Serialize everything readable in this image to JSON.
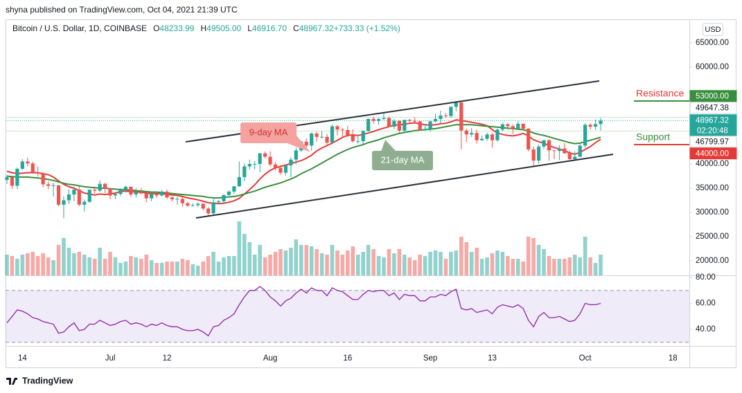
{
  "header": {
    "published": "shyna published on TradingView.com, Oct 04, 2021 21:39 UTC",
    "brand": "TradingView"
  },
  "chart_data": {
    "type": "candlestick",
    "title": "Bitcoin / U.S. Dollar, 1D, COINBASE",
    "ohlc": [
      {
        "key": "O",
        "text": "48233.99"
      },
      {
        "key": "H",
        "text": "49505.00"
      },
      {
        "key": "L",
        "text": "46916.70"
      },
      {
        "key": "C",
        "text": "48967.32"
      },
      {
        "key": "",
        "text": "+733.33 (+1.52%)"
      }
    ],
    "currency": "USD",
    "categories": [
      null,
      null,
      null,
      "14",
      null,
      null,
      null,
      null,
      null,
      null,
      null,
      null,
      null,
      null,
      null,
      null,
      null,
      null,
      null,
      null,
      "Jul",
      null,
      null,
      null,
      null,
      null,
      null,
      null,
      null,
      null,
      null,
      "12",
      null,
      null,
      null,
      null,
      null,
      null,
      null,
      null,
      null,
      null,
      null,
      null,
      null,
      null,
      null,
      null,
      null,
      null,
      null,
      "Aug",
      null,
      null,
      null,
      null,
      null,
      null,
      null,
      null,
      null,
      null,
      null,
      null,
      null,
      null,
      "16",
      null,
      null,
      null,
      null,
      null,
      null,
      null,
      null,
      null,
      null,
      null,
      null,
      null,
      null,
      null,
      "Sep",
      null,
      null,
      null,
      null,
      null,
      null,
      null,
      null,
      null,
      null,
      null,
      "13",
      null,
      null,
      null,
      null,
      null,
      null,
      null,
      null,
      null,
      null,
      null,
      null,
      null,
      null,
      null,
      null,
      null,
      "Oct",
      null,
      null,
      null,
      null,
      null,
      null,
      null,
      null,
      null,
      null,
      null,
      null,
      null,
      null,
      null,
      null,
      "18",
      null,
      null,
      null
    ],
    "open": [
      36700,
      37300,
      35500,
      39000,
      40500,
      40100,
      38300,
      38000,
      35800,
      35500,
      35600,
      31600,
      32500,
      33700,
      34700,
      31600,
      32200,
      34700,
      34500,
      35900,
      35000,
      33500,
      33800,
      34700,
      35300,
      33700,
      34200,
      33900,
      32900,
      33800,
      33500,
      34300,
      33100,
      32700,
      32800,
      31900,
      31400,
      31500,
      31800,
      30800,
      29800,
      32100,
      32300,
      33600,
      34300,
      35400,
      37300,
      39500,
      40000,
      40000,
      42200,
      41500,
      39900,
      39200,
      38200,
      39700,
      40900,
      42800,
      44600,
      43800,
      46300,
      45600,
      45600,
      44400,
      47800,
      47100,
      47000,
      45900,
      44700,
      44700,
      46800,
      49300,
      48900,
      49300,
      49500,
      47700,
      48900,
      46900,
      49100,
      48900,
      48800,
      47000,
      47200,
      48800,
      49300,
      50000,
      49900,
      51800,
      52700,
      46900,
      46100,
      46400,
      44900,
      45200,
      46100,
      44900,
      47100,
      48200,
      47800,
      47300,
      48300,
      47300,
      43000,
      40700,
      43600,
      44900,
      42800,
      42700,
      43200,
      42200,
      41000,
      41500,
      43800,
      48100,
      47700,
      48233.99,
      null,
      null,
      null,
      null,
      null,
      null,
      null,
      null,
      null,
      null,
      null,
      null,
      null,
      null,
      null,
      null,
      null
    ],
    "high": [
      37700,
      37400,
      39300,
      41000,
      41300,
      40500,
      39500,
      38200,
      36400,
      36100,
      35700,
      33300,
      34800,
      35300,
      35500,
      32700,
      34700,
      35300,
      36600,
      36100,
      35100,
      33900,
      35000,
      35500,
      35300,
      35000,
      35100,
      34000,
      34100,
      34000,
      34600,
      34700,
      33300,
      33200,
      33200,
      32200,
      31900,
      32100,
      31900,
      31100,
      32800,
      32600,
      33700,
      34500,
      35400,
      40500,
      40100,
      40900,
      40600,
      42300,
      42600,
      42600,
      40400,
      39800,
      39900,
      41400,
      43400,
      44800,
      45300,
      46500,
      46700,
      46800,
      46200,
      48100,
      48100,
      47400,
      47900,
      47200,
      46000,
      47000,
      49400,
      49800,
      49500,
      50500,
      49800,
      49300,
      49000,
      49200,
      49300,
      49600,
      48900,
      48200,
      48900,
      50400,
      51000,
      50500,
      51900,
      52900,
      52900,
      47300,
      47400,
      47100,
      45900,
      46500,
      46400,
      47300,
      48500,
      48500,
      48200,
      48800,
      48400,
      47400,
      43600,
      44000,
      45000,
      45100,
      42800,
      43900,
      44300,
      42800,
      42600,
      44100,
      48400,
      48400,
      49200,
      49505,
      null,
      null,
      null,
      null,
      null,
      null,
      null,
      null,
      null,
      null,
      null,
      null,
      null,
      null,
      null,
      null,
      null
    ],
    "low": [
      35900,
      34800,
      34800,
      38800,
      39500,
      38100,
      37400,
      35200,
      34800,
      33300,
      31300,
      28800,
      31700,
      32300,
      31300,
      30200,
      32000,
      33900,
      34200,
      34000,
      32700,
      32700,
      33400,
      34100,
      33200,
      33100,
      33800,
      32100,
      32300,
      33000,
      33300,
      32700,
      32300,
      31600,
      31200,
      31100,
      31200,
      31100,
      30400,
      29300,
      29500,
      31700,
      31800,
      33400,
      33900,
      35300,
      36400,
      38800,
      38900,
      38300,
      41100,
      39500,
      38700,
      37700,
      37600,
      37300,
      39900,
      42500,
      43400,
      42800,
      44600,
      45300,
      43800,
      44300,
      45900,
      45500,
      45600,
      44400,
      44200,
      43900,
      46700,
      48300,
      48100,
      49100,
      47600,
      47200,
      46300,
      46400,
      48400,
      48300,
      46900,
      46800,
      46700,
      48600,
      48400,
      49500,
      49500,
      50900,
      43000,
      44500,
      45600,
      44200,
      44800,
      44800,
      43400,
      44600,
      46700,
      47100,
      46200,
      47100,
      46900,
      42600,
      39600,
      40100,
      43100,
      40700,
      41000,
      40800,
      42100,
      40900,
      40800,
      41400,
      43300,
      47100,
      47100,
      46916.7,
      null,
      null,
      null,
      null,
      null,
      null,
      null,
      null,
      null,
      null,
      null,
      null,
      null,
      null,
      null,
      null,
      null
    ],
    "close": [
      37300,
      35500,
      39000,
      40500,
      40100,
      38300,
      38000,
      35800,
      35500,
      35600,
      31600,
      32500,
      33700,
      34700,
      31600,
      32200,
      34700,
      34500,
      35900,
      35000,
      33500,
      33800,
      34700,
      35300,
      33700,
      34200,
      33900,
      32900,
      33800,
      33500,
      34300,
      33100,
      32700,
      32800,
      31900,
      31400,
      31500,
      31800,
      30800,
      29800,
      32100,
      32300,
      33600,
      34300,
      35400,
      37300,
      39500,
      40000,
      40000,
      42200,
      41500,
      39900,
      39200,
      38200,
      39700,
      40900,
      42800,
      44600,
      43800,
      46300,
      45600,
      45600,
      44400,
      47800,
      47100,
      47000,
      45900,
      44700,
      44700,
      46800,
      49300,
      48900,
      49300,
      49500,
      47700,
      48900,
      46900,
      49100,
      48900,
      48800,
      47000,
      47200,
      48800,
      49300,
      50000,
      49900,
      51800,
      52700,
      46900,
      46100,
      46400,
      44900,
      45200,
      46100,
      44900,
      47100,
      48200,
      47800,
      47300,
      48300,
      47300,
      43000,
      40700,
      43600,
      44900,
      42800,
      42700,
      43200,
      42200,
      41000,
      41500,
      43800,
      48100,
      47700,
      48233.99,
      48967.32,
      null,
      null,
      null,
      null,
      null,
      null,
      null,
      null,
      null,
      null,
      null,
      null,
      null,
      null,
      null,
      null,
      null
    ],
    "up_color": "#26a69a",
    "down_color": "#ef5350",
    "ylim": [
      17000,
      69860
    ],
    "yticks": [
      {
        "value": 65000,
        "label": "65000.00"
      },
      {
        "value": 60000,
        "label": "60000.00"
      },
      {
        "value": 40000,
        "label": "40000.00"
      },
      {
        "value": 35000,
        "label": "35000.00"
      },
      {
        "value": 30000,
        "label": "30000.00"
      },
      {
        "value": 25000,
        "label": "25000.00"
      },
      {
        "value": 20000,
        "label": "20000.00"
      }
    ],
    "ma_lines": [
      {
        "name": "9-day MA",
        "color": "#e53935",
        "values": [
          38500,
          38200,
          38000,
          38100,
          38200,
          38200,
          38200,
          38000,
          37800,
          37300,
          36500,
          35800,
          35300,
          35000,
          34500,
          34000,
          33800,
          33600,
          33800,
          33700,
          33800,
          34000,
          34300,
          34400,
          34300,
          34200,
          34200,
          34000,
          33900,
          33900,
          33900,
          33700,
          33600,
          33500,
          33300,
          33000,
          32800,
          32600,
          32300,
          32000,
          31900,
          31800,
          31900,
          32100,
          32400,
          32900,
          33800,
          34700,
          35700,
          36900,
          37900,
          38700,
          39200,
          39500,
          39800,
          40100,
          40400,
          40700,
          41200,
          41800,
          42700,
          43300,
          43800,
          44300,
          44900,
          45500,
          45900,
          46000,
          45900,
          46100,
          46400,
          46700,
          47100,
          47400,
          47700,
          48000,
          48100,
          48200,
          48400,
          48500,
          48300,
          48100,
          48000,
          48100,
          48300,
          48400,
          48700,
          49100,
          49000,
          48800,
          48600,
          48400,
          48200,
          47900,
          47100,
          46400,
          46100,
          45900,
          45800,
          46000,
          46300,
          45800,
          45000,
          44600,
          44300,
          43800,
          43400,
          43100,
          42700,
          42300,
          42000,
          42400,
          43000,
          43600,
          44400,
          45100,
          null,
          null,
          null,
          null,
          null,
          null,
          null,
          null,
          null,
          null,
          null,
          null,
          null,
          null,
          null,
          null,
          null
        ]
      },
      {
        "name": "21-day MA",
        "color": "#388e3c",
        "values": [
          37500,
          37400,
          37300,
          37300,
          37300,
          37200,
          37100,
          37000,
          36800,
          36600,
          36300,
          36000,
          35800,
          35700,
          35500,
          35300,
          35200,
          35100,
          35000,
          35000,
          34900,
          34800,
          34700,
          34700,
          34600,
          34500,
          34400,
          34300,
          34200,
          34200,
          34100,
          34000,
          33900,
          33800,
          33700,
          33600,
          33500,
          33400,
          33300,
          33100,
          33000,
          33000,
          33100,
          33200,
          33300,
          33500,
          33800,
          34100,
          34400,
          34800,
          35200,
          35500,
          35800,
          36100,
          36500,
          36900,
          37400,
          38000,
          38500,
          39000,
          39600,
          40200,
          40800,
          41400,
          42000,
          42500,
          43000,
          43400,
          43700,
          44000,
          44400,
          44700,
          45000,
          45400,
          45700,
          46000,
          46300,
          46500,
          46700,
          46900,
          47000,
          47100,
          47200,
          47300,
          47500,
          47700,
          47900,
          48100,
          48100,
          48100,
          48100,
          48000,
          47900,
          47800,
          47700,
          47600,
          47500,
          47400,
          47300,
          47200,
          47100,
          46800,
          46400,
          46100,
          45900,
          45600,
          45300,
          45000,
          44700,
          44400,
          44200,
          44300,
          44600,
          44900,
          45200,
          45500,
          null,
          null,
          null,
          null,
          null,
          null,
          null,
          null,
          null,
          null,
          null,
          null,
          null,
          null,
          null,
          null,
          null
        ]
      }
    ],
    "volume": {
      "ylim": [
        0,
        25000
      ],
      "values": [
        7500,
        7000,
        6000,
        7500,
        8000,
        8500,
        7000,
        8000,
        6500,
        5500,
        11000,
        13500,
        10000,
        8000,
        8500,
        7500,
        6500,
        6000,
        10000,
        6000,
        8500,
        6500,
        4500,
        5000,
        7000,
        6500,
        6000,
        7500,
        5500,
        4500,
        4500,
        5000,
        5000,
        5000,
        6000,
        5500,
        4000,
        3500,
        5000,
        7000,
        8500,
        5000,
        6500,
        7000,
        7000,
        19500,
        15000,
        12000,
        7500,
        11000,
        6500,
        7500,
        8500,
        9500,
        9000,
        10000,
        13000,
        11000,
        11000,
        10500,
        9500,
        8000,
        7500,
        11000,
        9000,
        7500,
        9000,
        10500,
        7500,
        8500,
        11000,
        9500,
        7000,
        6500,
        9500,
        8000,
        9500,
        7500,
        6500,
        5500,
        7500,
        7000,
        8500,
        9000,
        8500,
        6000,
        8500,
        9000,
        14000,
        12000,
        8500,
        10000,
        6000,
        6500,
        8000,
        9000,
        8500,
        7000,
        6000,
        6000,
        5000,
        14000,
        13500,
        11000,
        9500,
        7000,
        6000,
        6000,
        6000,
        6500,
        7500,
        6500,
        14000,
        6500,
        4500,
        7500,
        null,
        null,
        null,
        null,
        null,
        null,
        null,
        null,
        null,
        null,
        null,
        null,
        null,
        null,
        null,
        null,
        null
      ]
    },
    "rsi": {
      "color": "#8e24aa",
      "band": [
        30,
        70
      ],
      "ylim": [
        27.2,
        81.6
      ],
      "yticks": [
        {
          "value": 80,
          "label": "80.00"
        },
        {
          "value": 60,
          "label": "60.00"
        },
        {
          "value": 40,
          "label": "40.00"
        }
      ],
      "values": [
        45,
        50,
        55,
        54,
        52,
        49,
        48,
        46,
        45,
        44,
        37,
        38,
        42,
        45,
        39,
        40,
        44,
        44,
        47,
        45,
        43,
        44,
        46,
        47,
        44,
        45,
        44,
        42,
        44,
        43,
        45,
        43,
        42,
        42,
        40,
        39,
        39,
        40,
        38,
        35,
        42,
        43,
        47,
        49,
        52,
        59,
        65,
        70,
        70,
        73,
        70,
        65,
        62,
        58,
        62,
        64,
        68,
        71,
        68,
        72,
        70,
        70,
        66,
        72,
        70,
        69,
        66,
        63,
        63,
        67,
        70,
        69,
        70,
        70,
        66,
        68,
        63,
        67,
        66,
        66,
        62,
        62,
        65,
        65,
        67,
        66,
        69,
        71,
        56,
        55,
        56,
        53,
        54,
        55,
        52,
        57,
        59,
        58,
        57,
        59,
        56,
        47,
        42,
        50,
        53,
        49,
        49,
        50,
        48,
        46,
        47,
        52,
        60,
        59,
        59,
        60,
        null,
        null,
        null,
        null,
        null,
        null,
        null,
        null,
        null,
        null,
        null,
        null,
        null,
        null,
        null,
        null,
        null
      ]
    },
    "price_labels": [
      {
        "value": 53000,
        "label": "53000.00",
        "color": "#388e3c",
        "label_color": "#ffffff",
        "text": "Resistance",
        "text_color": "#e53935"
      },
      {
        "value": 49647.38,
        "label": "49647.38",
        "color": "#ffffff",
        "label_color": "#131722",
        "line_color": "#c8e6c9"
      },
      {
        "value": 48967.32,
        "label": "48967.32",
        "color": "#26a69a",
        "label_color": "#ffffff",
        "countdown": "02:20:48"
      },
      {
        "value": 46799.97,
        "label": "46799.97",
        "color": "#ffffff",
        "label_color": "#131722",
        "line_color": "#c8e6c9"
      },
      {
        "value": 44000,
        "label": "44000.00",
        "color": "#e53935",
        "label_color": "#ffffff",
        "text": "Support",
        "text_color": "#388e3c"
      }
    ]
  }
}
